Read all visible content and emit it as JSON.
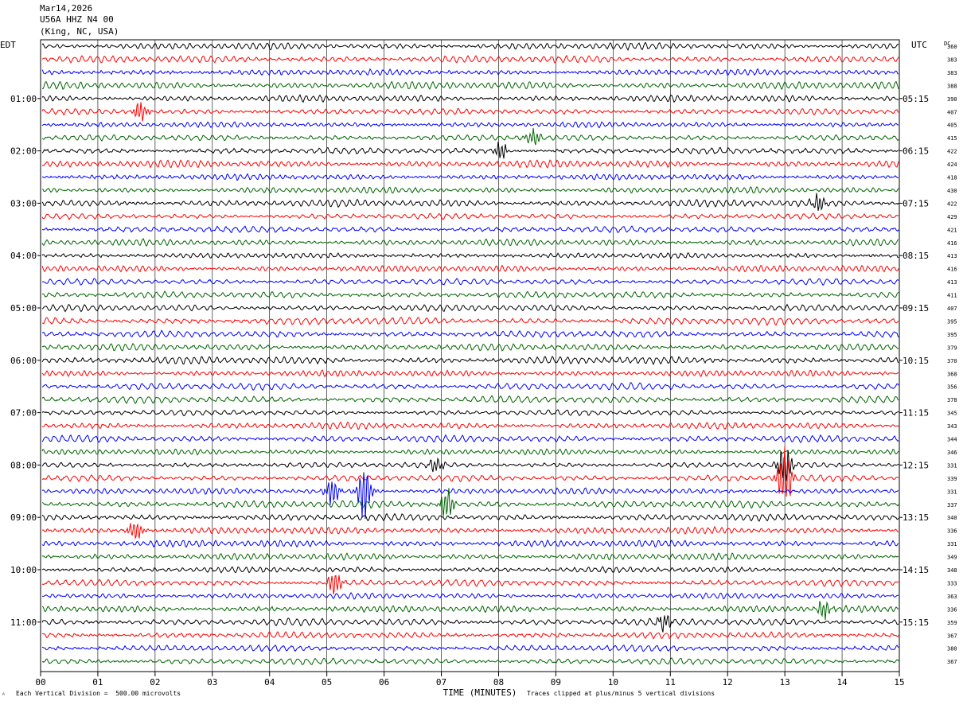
{
  "header": {
    "date": "Mar14,2026",
    "station": "U56A HHZ N4 00",
    "location": "(King, NC, USA)"
  },
  "chart_data": {
    "type": "line",
    "title": "",
    "left_timezone": "EDT",
    "right_timezone": "UTC",
    "dc_label": "DC",
    "xlabel": "TIME (MINUTES)",
    "xlim": [
      0,
      15
    ],
    "x_ticks": [
      "00",
      "01",
      "02",
      "03",
      "04",
      "05",
      "06",
      "07",
      "08",
      "09",
      "10",
      "11",
      "12",
      "13",
      "14",
      "15"
    ],
    "grid": true,
    "trace_colors": [
      "#000000",
      "#ff0000",
      "#0000ff",
      "#006400"
    ],
    "hour_labels_left": [
      "01:00",
      "02:00",
      "03:00",
      "04:00",
      "05:00",
      "06:00",
      "07:00",
      "08:00",
      "09:00",
      "10:00",
      "11:00"
    ],
    "hour_labels_right": [
      "05:15",
      "06:15",
      "07:15",
      "08:15",
      "09:15",
      "10:15",
      "11:15",
      "12:15",
      "13:15",
      "14:15",
      "15:15"
    ],
    "dc_offsets": [
      360,
      383,
      383,
      388,
      390,
      407,
      405,
      415,
      422,
      424,
      418,
      430,
      422,
      429,
      421,
      416,
      413,
      416,
      413,
      411,
      407,
      395,
      395,
      379,
      370,
      368,
      356,
      378,
      345,
      343,
      344,
      346,
      331,
      339,
      331,
      337,
      340,
      336,
      331,
      349,
      348,
      333,
      363,
      336,
      359,
      367,
      380,
      367
    ],
    "events": [
      {
        "trace": 5,
        "minute": 1.75,
        "amp": 1.6
      },
      {
        "trace": 7,
        "minute": 8.6,
        "amp": 1.3
      },
      {
        "trace": 8,
        "minute": 8.05,
        "amp": 1.2
      },
      {
        "trace": 12,
        "minute": 13.6,
        "amp": 1.2
      },
      {
        "trace": 32,
        "minute": 6.9,
        "amp": 1.2
      },
      {
        "trace": 32,
        "minute": 13.0,
        "amp": 3.0
      },
      {
        "trace": 33,
        "minute": 13.0,
        "amp": 4.5
      },
      {
        "trace": 34,
        "minute": 5.1,
        "amp": 2.0
      },
      {
        "trace": 34,
        "minute": 5.65,
        "amp": 4.2
      },
      {
        "trace": 35,
        "minute": 7.1,
        "amp": 2.2
      },
      {
        "trace": 37,
        "minute": 1.65,
        "amp": 1.8
      },
      {
        "trace": 41,
        "minute": 5.15,
        "amp": 1.8
      },
      {
        "trace": 43,
        "minute": 13.7,
        "amp": 1.5
      },
      {
        "trace": 44,
        "minute": 10.9,
        "amp": 1.2
      }
    ]
  },
  "footer": {
    "scale_note": "Each Vertical Division =  500.00 microvolts",
    "clip_note": "Traces clipped at plus/minus 5 vertical divisions"
  }
}
